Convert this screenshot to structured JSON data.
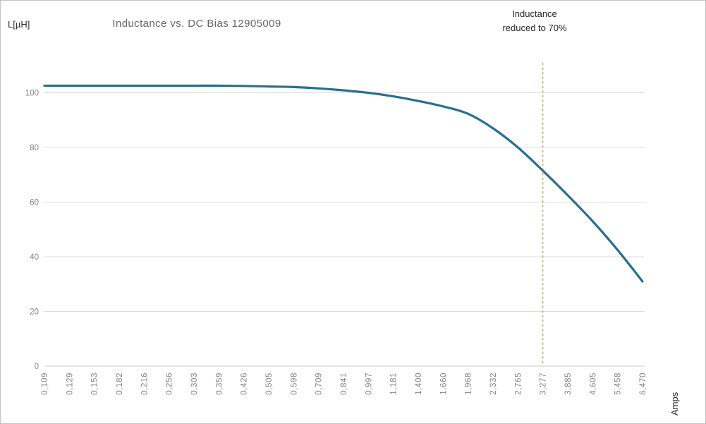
{
  "window": {
    "background": "#ffffff",
    "border_color": "#c3c3c3"
  },
  "labels": {
    "y_axis_unit": "L[µH]",
    "title": "Inductance vs. DC Bias 12905009",
    "annotation": {
      "line1": "Inductance",
      "line2": "reduced to 70%"
    },
    "x_axis_unit": "Amps"
  },
  "chart_data": {
    "type": "line",
    "title": "Inductance vs. DC Bias 12905009",
    "xlabel": "Amps",
    "ylabel": "L[µH]",
    "categories": [
      "0,109",
      "0,129",
      "0,153",
      "0,182",
      "0,216",
      "0,256",
      "0,303",
      "0,359",
      "0,426",
      "0,505",
      "0,598",
      "0,709",
      "0,841",
      "0,997",
      "1,181",
      "1,400",
      "1,660",
      "1,968",
      "2,332",
      "2,765",
      "3,277",
      "3,885",
      "4,605",
      "5,458",
      "6,470"
    ],
    "series": [
      {
        "name": "Inductance",
        "color": "#26708e",
        "values": [
          102.6,
          102.6,
          102.6,
          102.6,
          102.6,
          102.6,
          102.6,
          102.6,
          102.5,
          102.3,
          102.1,
          101.6,
          100.9,
          100.0,
          98.7,
          97.0,
          95.0,
          92.3,
          87.0,
          80.0,
          71.5,
          62.5,
          53.0,
          42.5,
          31.0
        ]
      }
    ],
    "y_ticks": [
      0,
      20,
      40,
      60,
      80,
      100
    ],
    "ylim": [
      0,
      110
    ],
    "grid": "horizontal-only",
    "legend": "none",
    "marker_line": {
      "label": "Inductance reduced to 70%",
      "at_category": "3,277",
      "category_index": 20,
      "style": "dashed",
      "color": "#cba783"
    }
  },
  "colors": {
    "curve": "#26708e",
    "gridline": "#dcdcdc",
    "axis_line": "#c9c9c9",
    "tick_label": "#848484",
    "title_text": "#666666",
    "dark_text": "#262626",
    "marker_line": "#cba783"
  }
}
